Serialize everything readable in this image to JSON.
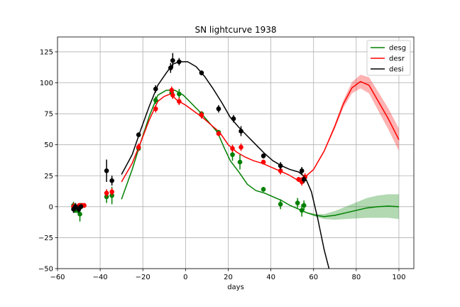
{
  "chart_data": {
    "type": "line",
    "title": "SN lightcurve 1938",
    "xlabel": "days",
    "ylabel": "",
    "xlim": [
      -60,
      107
    ],
    "ylim": [
      -50,
      137
    ],
    "xticks": [
      -60,
      -40,
      -20,
      0,
      20,
      40,
      60,
      80,
      100
    ],
    "yticks": [
      -50,
      -25,
      0,
      25,
      50,
      75,
      100,
      125
    ],
    "grid": true,
    "legend_position": "top-right",
    "series": [
      {
        "name": "desg",
        "color": "#008000",
        "curve": {
          "x": [
            -30,
            -25,
            -21,
            -17,
            -13,
            -9,
            -5,
            -1,
            3,
            7,
            11,
            15,
            18,
            21,
            25,
            29,
            33,
            37,
            41,
            45,
            49,
            53,
            57,
            61,
            65,
            70,
            75,
            80,
            85,
            90,
            95,
            100
          ],
          "y": [
            6,
            30,
            52,
            73,
            90,
            94,
            94,
            90,
            83,
            76,
            68,
            60,
            48,
            37,
            28,
            18,
            13,
            11,
            8,
            5,
            1,
            -2,
            -5,
            -7,
            -8,
            -7,
            -5,
            -3,
            -1,
            0,
            0.5,
            0
          ],
          "band": [
            0,
            0,
            0,
            0,
            0,
            0,
            0,
            0,
            0,
            0,
            0,
            0,
            0,
            0,
            0,
            0,
            0,
            0,
            0,
            0,
            0,
            0,
            0.5,
            1.2,
            2,
            3.5,
            5,
            6.5,
            8,
            9,
            9.5,
            10
          ]
        },
        "points": [
          {
            "x": -52.5,
            "y": 1,
            "err": 3
          },
          {
            "x": -51.8,
            "y": -3,
            "err": 2
          },
          {
            "x": -51,
            "y": -2,
            "err": 3
          },
          {
            "x": -50.3,
            "y": -3,
            "err": 3
          },
          {
            "x": -49.5,
            "y": -6,
            "err": 6
          },
          {
            "x": -49,
            "y": 1,
            "err": 2
          },
          {
            "x": -37,
            "y": 8,
            "err": 5
          },
          {
            "x": -34.5,
            "y": 9,
            "err": 7
          },
          {
            "x": -22,
            "y": 47,
            "err": 2
          },
          {
            "x": -14,
            "y": 86,
            "err": 3
          },
          {
            "x": -6.5,
            "y": 92,
            "err": 3
          },
          {
            "x": -3,
            "y": 91,
            "err": 4
          },
          {
            "x": 7.5,
            "y": 75,
            "err": 2
          },
          {
            "x": 15.5,
            "y": 60,
            "err": 2
          },
          {
            "x": 22,
            "y": 42,
            "err": 5
          },
          {
            "x": 25.5,
            "y": 36,
            "err": 6
          },
          {
            "x": 36.5,
            "y": 14,
            "err": 2
          },
          {
            "x": 44.5,
            "y": 2,
            "err": 4
          },
          {
            "x": 52.5,
            "y": 3,
            "err": 4
          },
          {
            "x": 54.5,
            "y": -3,
            "err": 5
          },
          {
            "x": 55.5,
            "y": 1,
            "err": 4
          }
        ]
      },
      {
        "name": "desr",
        "color": "#ff0000",
        "curve": {
          "x": [
            -30,
            -25,
            -21,
            -17,
            -13,
            -10,
            -7,
            -4,
            0,
            4,
            8,
            12,
            16,
            20,
            24,
            28,
            32,
            36,
            40,
            44,
            48,
            52,
            56,
            60,
            65,
            70,
            74,
            78,
            82,
            86,
            90,
            95,
            100
          ],
          "y": [
            20,
            35,
            52,
            70,
            85,
            89,
            91,
            86,
            82,
            77,
            72,
            66,
            60,
            50,
            44,
            40,
            37,
            35,
            32,
            29,
            26,
            22,
            24,
            30,
            45,
            65,
            83,
            96,
            101,
            98,
            86,
            71,
            54
          ],
          "band": [
            0,
            0,
            0,
            0,
            0,
            0,
            0,
            0,
            0,
            0,
            0,
            0,
            0,
            0,
            0,
            0,
            0,
            0,
            0,
            0,
            0,
            0,
            0.3,
            0.6,
            1,
            2,
            3,
            4.5,
            5.5,
            6.5,
            7.5,
            8.5,
            9
          ]
        },
        "points": [
          {
            "x": -52.5,
            "y": 0,
            "err": 3
          },
          {
            "x": -51.5,
            "y": 0,
            "err": 2
          },
          {
            "x": -49.8,
            "y": 1,
            "err": 2
          },
          {
            "x": -48.5,
            "y": 1,
            "err": 2
          },
          {
            "x": -47.5,
            "y": 1,
            "err": 2
          },
          {
            "x": -37,
            "y": 11,
            "err": 3
          },
          {
            "x": -34.5,
            "y": 12,
            "err": 3
          },
          {
            "x": -22,
            "y": 48,
            "err": 3
          },
          {
            "x": -14,
            "y": 79,
            "err": 3
          },
          {
            "x": -6.5,
            "y": 94,
            "err": 3
          },
          {
            "x": -6,
            "y": 90,
            "err": 3
          },
          {
            "x": -3,
            "y": 85,
            "err": 3
          },
          {
            "x": 7.5,
            "y": 74,
            "err": 3
          },
          {
            "x": 15.5,
            "y": 59,
            "err": 2
          },
          {
            "x": 22,
            "y": 47,
            "err": 3
          },
          {
            "x": 26,
            "y": 48,
            "err": 3
          },
          {
            "x": 36.5,
            "y": 36,
            "err": 2
          },
          {
            "x": 44.5,
            "y": 29,
            "err": 3
          },
          {
            "x": 53,
            "y": 22,
            "err": 2
          },
          {
            "x": 54.5,
            "y": 20,
            "err": 3
          },
          {
            "x": 56,
            "y": 24,
            "err": 3
          }
        ]
      },
      {
        "name": "desi",
        "color": "#000000",
        "curve": {
          "x": [
            -30,
            -25,
            -21,
            -17,
            -13,
            -9,
            -6,
            -3,
            1,
            5,
            9,
            13,
            17,
            21,
            25,
            29,
            33,
            37,
            41,
            45,
            49,
            53,
            56,
            59,
            62,
            65,
            68,
            70
          ],
          "y": [
            26,
            42,
            62,
            81,
            98,
            108,
            115,
            117,
            117,
            113,
            105,
            95,
            84,
            72,
            64,
            57,
            50,
            43,
            37,
            33,
            30,
            28,
            24,
            12,
            -10,
            -35,
            -55,
            -70
          ]
        },
        "points": [
          {
            "x": -52.5,
            "y": -2,
            "err": 3
          },
          {
            "x": -51.5,
            "y": 0,
            "err": 3
          },
          {
            "x": -50,
            "y": -2,
            "err": 3
          },
          {
            "x": -49,
            "y": 0,
            "err": 2
          },
          {
            "x": -37,
            "y": 29,
            "err": 9
          },
          {
            "x": -34.5,
            "y": 21,
            "err": 4
          },
          {
            "x": -22,
            "y": 58,
            "err": 2
          },
          {
            "x": -14,
            "y": 95,
            "err": 3
          },
          {
            "x": -7,
            "y": 112,
            "err": 4
          },
          {
            "x": -6,
            "y": 118,
            "err": 6
          },
          {
            "x": -3,
            "y": 117,
            "err": 3
          },
          {
            "x": 7.5,
            "y": 108,
            "err": 2
          },
          {
            "x": 15.5,
            "y": 79,
            "err": 3
          },
          {
            "x": 22.5,
            "y": 71,
            "err": 3
          },
          {
            "x": 26,
            "y": 61,
            "err": 4
          },
          {
            "x": 36.5,
            "y": 41,
            "err": 2
          },
          {
            "x": 44.5,
            "y": 33,
            "err": 3
          },
          {
            "x": 54.5,
            "y": 29,
            "err": 3
          },
          {
            "x": 55.5,
            "y": 22,
            "err": 3
          }
        ]
      }
    ]
  }
}
